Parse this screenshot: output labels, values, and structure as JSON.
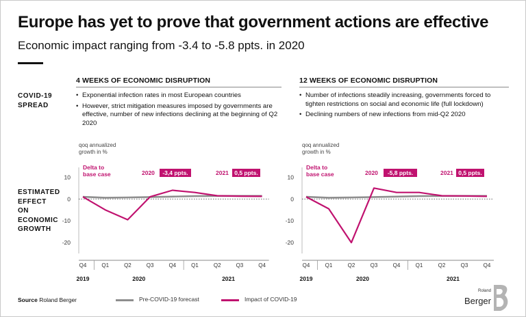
{
  "title": "Europe has yet to prove that government actions are effective",
  "subtitle": "Economic impact ranging from -3.4 to -5.8 ppts. in 2020",
  "rows": {
    "spread": [
      "COVID-19",
      "SPREAD"
    ],
    "effect": [
      "ESTIMATED",
      "EFFECT",
      "ON",
      "ECONOMIC",
      "GROWTH"
    ]
  },
  "panels": [
    {
      "header": "4 WEEKS OF ECONOMIC DISRUPTION",
      "bullets": [
        "Exponential infection rates in most European countries",
        "However, strict mitigation measures imposed by governments are effective, number of new infections declining at the beginning of Q2 2020"
      ]
    },
    {
      "header": "12 WEEKS OF ECONOMIC DISRUPTION",
      "bullets": [
        "Number of infections steadily increasing, governments forced to tighten restrictions on social and economic life (full lockdown)",
        "Declining numbers of new infections from mid-Q2 2020"
      ]
    }
  ],
  "chart_data": [
    {
      "type": "line",
      "ylabel": "qoq annualized growth in %",
      "ylim": [
        -25,
        12
      ],
      "yticks": [
        10,
        0,
        -10,
        -20
      ],
      "categories": [
        "Q4",
        "Q1",
        "Q2",
        "Q3",
        "Q4",
        "Q1",
        "Q2",
        "Q3",
        "Q4"
      ],
      "years": [
        {
          "label": "2019",
          "from": 0,
          "to": 0
        },
        {
          "label": "2020",
          "from": 1,
          "to": 4
        },
        {
          "label": "2021",
          "from": 5,
          "to": 8
        }
      ],
      "series": [
        {
          "name": "Pre-COVID-19 forecast",
          "color": "#8e8e8e",
          "values": [
            1,
            0.6,
            0.7,
            0.9,
            1.1,
            1.3,
            1.4,
            1.4,
            1.4
          ]
        },
        {
          "name": "Impact of COVID-19",
          "color": "#c0126f",
          "values": [
            1,
            -5,
            -9.5,
            1,
            4,
            3,
            1.5,
            1.3,
            1.2
          ]
        }
      ],
      "annotations": {
        "delta": "Delta to base case",
        "year_labels": [
          "2020",
          "2021"
        ],
        "boxes": [
          "-3,4 ppts.",
          "0,5 ppts."
        ]
      }
    },
    {
      "type": "line",
      "ylabel": "qoq annualized growth in %",
      "ylim": [
        -25,
        12
      ],
      "yticks": [
        10,
        0,
        -10,
        -20
      ],
      "categories": [
        "Q4",
        "Q1",
        "Q2",
        "Q3",
        "Q4",
        "Q1",
        "Q2",
        "Q3",
        "Q4"
      ],
      "years": [
        {
          "label": "2019",
          "from": 0,
          "to": 0
        },
        {
          "label": "2020",
          "from": 1,
          "to": 4
        },
        {
          "label": "2021",
          "from": 5,
          "to": 8
        }
      ],
      "series": [
        {
          "name": "Pre-COVID-19 forecast",
          "color": "#8e8e8e",
          "values": [
            1,
            0.6,
            0.7,
            0.9,
            1.1,
            1.3,
            1.4,
            1.4,
            1.4
          ]
        },
        {
          "name": "Impact of COVID-19",
          "color": "#c0126f",
          "values": [
            1,
            -4.5,
            -20,
            5,
            3,
            3,
            1.5,
            1.4,
            1.2
          ]
        }
      ],
      "annotations": {
        "delta": "Delta to base case",
        "year_labels": [
          "2020",
          "2021"
        ],
        "boxes": [
          "-5,8 ppts.",
          "0,5 ppts."
        ]
      }
    }
  ],
  "legend": [
    "Pre-COVID-19 forecast",
    "Impact of COVID-19"
  ],
  "footer": {
    "source_label": "Source",
    "source_text": "Roland Berger"
  },
  "logo": {
    "line1": "Roland",
    "line2": "Berger"
  },
  "colors": {
    "accent": "#c0126f",
    "forecast": "#8e8e8e",
    "text": "#111111"
  }
}
